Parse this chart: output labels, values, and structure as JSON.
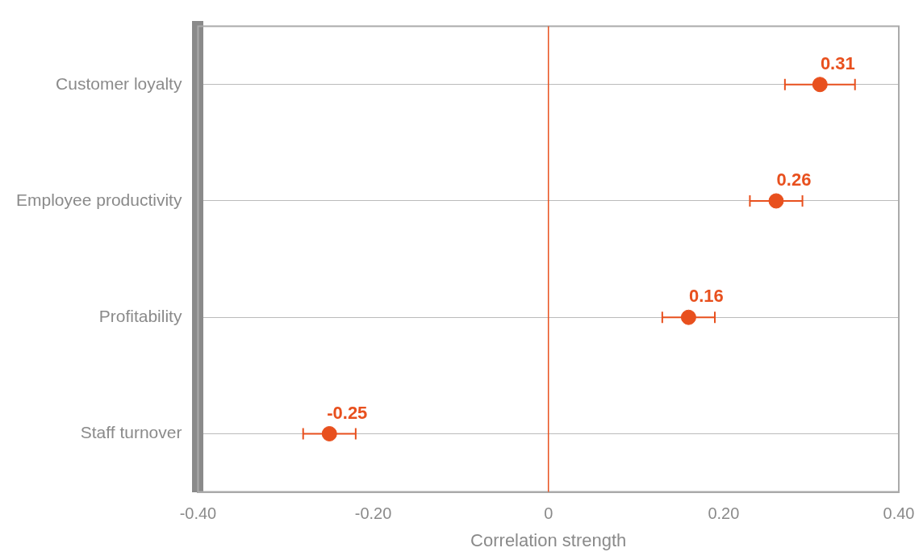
{
  "chart_data": {
    "type": "scatter",
    "orientation": "horizontal",
    "xlabel": "Correlation strength",
    "categories": [
      "Customer loyalty",
      "Employee productivity",
      "Profitability",
      "Staff turnover"
    ],
    "series": [
      {
        "color": "#e8501e",
        "values": [
          0.31,
          0.26,
          0.16,
          -0.25
        ],
        "errors": [
          0.04,
          0.03,
          0.03,
          0.03
        ]
      }
    ],
    "xlim": [
      -0.4,
      0.4
    ],
    "xticks": [
      {
        "value": -0.4,
        "label": "-0.40"
      },
      {
        "value": -0.2,
        "label": "-0.20"
      },
      0,
      {
        "value": 0.2,
        "label": "0.20"
      },
      {
        "value": 0.4,
        "label": "0.40"
      }
    ],
    "ref_lines": [
      {
        "axis": "x",
        "value": 0,
        "color": "#e8501e"
      }
    ],
    "grid": "y",
    "marker": "circle",
    "data_labels": true,
    "legend": false
  }
}
